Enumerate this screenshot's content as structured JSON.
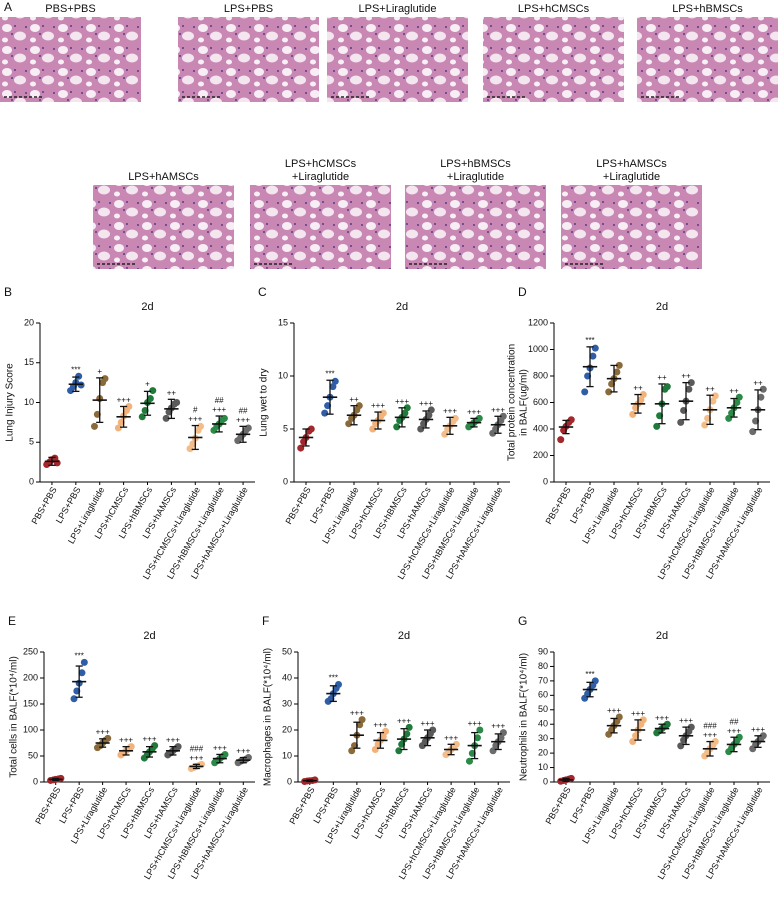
{
  "panel_a": {
    "panel_label": "A",
    "micrographs": [
      {
        "label": [
          "PBS+PBS"
        ]
      },
      {
        "label": [
          "LPS+PBS"
        ]
      },
      {
        "label": [
          "LPS+Liraglutide"
        ]
      },
      {
        "label": [
          "LPS+hCMSCs"
        ]
      },
      {
        "label": [
          "LPS+hBMSCs"
        ]
      },
      {
        "label": [
          "LPS+hAMSCs"
        ]
      },
      {
        "label": [
          "LPS+hCMSCs",
          "+Liraglutide"
        ]
      },
      {
        "label": [
          "LPS+hBMSCs",
          "+Liraglutide"
        ]
      },
      {
        "label": [
          "LPS+hAMSCs",
          "+Liraglutide"
        ]
      }
    ]
  },
  "chart_data": [
    {
      "type": "dotplot",
      "panel_label": "B",
      "title": "2d",
      "ylabel": [
        "Lung Injury Score"
      ],
      "categories": [
        "PBS+PBS",
        "LPS+PBS",
        "LPS+Liraglutide",
        "LPS+hCMSCs",
        "LPS+hBMSCs",
        "LPS+hAMSCs",
        "LPS+hCMSCs+Liraglutide",
        "LPS+hBMSCs+Liraglutide",
        "LPS+hAMSCs+Liraglutide"
      ],
      "colors": [
        "#a3272b",
        "#2f5da6",
        "#8a6a3a",
        "#f2b27b",
        "#1f7a3c",
        "#5a5a5a",
        "#f3bd8a",
        "#2b8a48",
        "#6b6b6b"
      ],
      "means": [
        2.6,
        12.3,
        10.3,
        8.2,
        9.9,
        9.2,
        5.6,
        7.3,
        6.0
      ],
      "sd": [
        0.5,
        0.9,
        2.8,
        1.3,
        1.5,
        1.2,
        1.5,
        1.0,
        1.0
      ],
      "points": [
        [
          2.2,
          2.5,
          2.8,
          3.0,
          2.4
        ],
        [
          11.5,
          12.0,
          12.5,
          13.3,
          12.2
        ],
        [
          7.0,
          8.5,
          10.5,
          12.5,
          13.0
        ],
        [
          6.8,
          7.5,
          8.3,
          9.0,
          9.5
        ],
        [
          8.2,
          9.0,
          10.0,
          10.5,
          11.5
        ],
        [
          8.0,
          8.8,
          9.3,
          9.8,
          10.0
        ],
        [
          4.2,
          4.8,
          5.5,
          6.5,
          7.0
        ],
        [
          6.5,
          7.0,
          7.3,
          7.8,
          8.0
        ],
        [
          5.2,
          5.6,
          6.0,
          6.5,
          6.8
        ]
      ],
      "annotations": [
        null,
        [
          "***"
        ],
        [
          "+"
        ],
        [
          "+++"
        ],
        [
          "+"
        ],
        [
          "++"
        ],
        [
          "#",
          "+++"
        ],
        [
          "##",
          "+++"
        ],
        [
          "##",
          "+++"
        ]
      ],
      "ylim": [
        0,
        20
      ],
      "yticks": [
        0,
        5,
        10,
        15,
        20
      ]
    },
    {
      "type": "dotplot",
      "panel_label": "C",
      "title": "2d",
      "ylabel": [
        "Lung wet to dry"
      ],
      "categories": [
        "PBS+PBS",
        "LPS+PBS",
        "LPS+Liraglutide",
        "LPS+hCMSCs",
        "LPS+hBMSCs",
        "LPS+hAMSCs",
        "LPS+hCMSCs+Liraglutide",
        "LPS+hBMSCs+Liraglutide",
        "LPS+hAMSCs+Liraglutide"
      ],
      "colors": [
        "#a3272b",
        "#2f5da6",
        "#8a6a3a",
        "#f2b27b",
        "#1f7a3c",
        "#5a5a5a",
        "#f3bd8a",
        "#2b8a48",
        "#6b6b6b"
      ],
      "means": [
        4.2,
        8.0,
        6.3,
        5.8,
        6.1,
        5.9,
        5.3,
        5.6,
        5.4
      ],
      "sd": [
        0.8,
        1.6,
        0.9,
        0.8,
        0.9,
        0.8,
        0.8,
        0.4,
        0.8
      ],
      "points": [
        [
          3.2,
          3.8,
          4.2,
          4.8,
          5.0
        ],
        [
          6.5,
          7.2,
          8.0,
          9.0,
          9.5
        ],
        [
          5.5,
          6.0,
          6.3,
          6.8,
          7.2
        ],
        [
          5.0,
          5.5,
          5.8,
          6.2,
          6.5
        ],
        [
          5.2,
          5.8,
          6.1,
          6.5,
          7.0
        ],
        [
          5.0,
          5.5,
          5.9,
          6.3,
          6.8
        ],
        [
          4.5,
          5.0,
          5.3,
          5.7,
          6.0
        ],
        [
          5.2,
          5.4,
          5.6,
          5.8,
          6.0
        ],
        [
          4.6,
          5.0,
          5.4,
          5.8,
          6.2
        ]
      ],
      "annotations": [
        null,
        [
          "***"
        ],
        [
          "++"
        ],
        [
          "+++"
        ],
        [
          "+++"
        ],
        [
          "+++"
        ],
        [
          "+++"
        ],
        [
          "+++"
        ],
        [
          "+++"
        ]
      ],
      "ylim": [
        0,
        15
      ],
      "yticks": [
        0,
        5,
        10,
        15
      ]
    },
    {
      "type": "dotplot",
      "panel_label": "D",
      "title": "2d",
      "ylabel": [
        "Total protein concentration",
        "in BALF(ug/ml)"
      ],
      "categories": [
        "PBS+PBS",
        "LPS+PBS",
        "LPS+Liraglutide",
        "LPS+hCMSCs",
        "LPS+hBMSCs",
        "LPS+hAMSCs",
        "LPS+hCMSCs+Liraglutide",
        "LPS+hBMSCs+Liraglutide",
        "LPS+hAMSCs+Liraglutide"
      ],
      "colors": [
        "#a3272b",
        "#2f5da6",
        "#8a6a3a",
        "#f2b27b",
        "#1f7a3c",
        "#5a5a5a",
        "#f3bd8a",
        "#2b8a48",
        "#6b6b6b"
      ],
      "means": [
        415,
        870,
        780,
        590,
        590,
        610,
        545,
        560,
        545
      ],
      "sd": [
        50,
        150,
        100,
        70,
        150,
        140,
        110,
        70,
        150
      ],
      "points": [
        [
          320,
          390,
          420,
          450,
          470
        ],
        [
          680,
          800,
          860,
          950,
          1010
        ],
        [
          680,
          740,
          780,
          830,
          880
        ],
        [
          510,
          560,
          590,
          620,
          660
        ],
        [
          420,
          500,
          590,
          700,
          720
        ],
        [
          450,
          540,
          610,
          700,
          750
        ],
        [
          430,
          480,
          545,
          610,
          650
        ],
        [
          480,
          520,
          560,
          600,
          640
        ],
        [
          380,
          460,
          545,
          640,
          700
        ]
      ],
      "annotations": [
        null,
        [
          "***"
        ],
        null,
        [
          "++"
        ],
        [
          "++"
        ],
        [
          "++"
        ],
        [
          "++"
        ],
        [
          "++"
        ],
        [
          "++"
        ]
      ],
      "ylim": [
        0,
        1200
      ],
      "yticks": [
        0,
        200,
        400,
        600,
        800,
        1000,
        1200
      ]
    },
    {
      "type": "dotplot",
      "panel_label": "E",
      "title": "2d",
      "ylabel": [
        "Total cells in BALF(*10⁴/ml)"
      ],
      "categories": [
        "PBS+PBS",
        "LPS+PBS",
        "LPS+Liraglutide",
        "LPS+hCMSCs",
        "LPS+hBMSCs",
        "LPS+hAMSCs",
        "LPS+hCMSCs+Liraglutide",
        "LPS+hBMSCs+Liraglutide",
        "LPS+hAMSCs+Liraglutide"
      ],
      "colors": [
        "#a3272b",
        "#2f5da6",
        "#8a6a3a",
        "#f2b27b",
        "#1f7a3c",
        "#5a5a5a",
        "#f3bd8a",
        "#2b8a48",
        "#6b6b6b"
      ],
      "means": [
        5,
        193,
        75,
        60,
        58,
        60,
        30,
        45,
        42
      ],
      "sd": [
        2,
        30,
        8,
        8,
        10,
        8,
        4,
        8,
        5
      ],
      "points": [
        [
          3,
          4,
          5,
          6,
          7
        ],
        [
          160,
          175,
          190,
          210,
          230
        ],
        [
          66,
          70,
          75,
          80,
          84
        ],
        [
          52,
          56,
          60,
          64,
          68
        ],
        [
          46,
          52,
          58,
          64,
          70
        ],
        [
          52,
          56,
          60,
          64,
          68
        ],
        [
          26,
          28,
          30,
          32,
          34
        ],
        [
          37,
          41,
          45,
          49,
          53
        ],
        [
          37,
          40,
          42,
          44,
          47
        ]
      ],
      "annotations": [
        null,
        [
          "***"
        ],
        [
          "+++"
        ],
        [
          "+++"
        ],
        [
          "+++"
        ],
        [
          "+++"
        ],
        [
          "###",
          "+++"
        ],
        [
          "+++"
        ],
        [
          "+++"
        ]
      ],
      "ylim": [
        0,
        250
      ],
      "yticks": [
        0,
        50,
        100,
        150,
        200,
        250
      ]
    },
    {
      "type": "dotplot",
      "panel_label": "F",
      "title": "2d",
      "ylabel": [
        "Macrophages in BALF(*10⁴/ml)"
      ],
      "categories": [
        "PBS+PBS",
        "LPS+PBS",
        "LPS+Liraglutide",
        "LPS+hCMSCs",
        "LPS+hBMSCs",
        "LPS+hAMSCs",
        "LPS+hCMSCs+Liraglutide",
        "LPS+hBMSCs+Liraglutide",
        "LPS+hAMSCs+Liraglutide"
      ],
      "colors": [
        "#a3272b",
        "#2f5da6",
        "#8a6a3a",
        "#f2b27b",
        "#1f7a3c",
        "#5a5a5a",
        "#f3bd8a",
        "#2b8a48",
        "#6b6b6b"
      ],
      "means": [
        0.5,
        34,
        18,
        16,
        16.5,
        17,
        12.5,
        14,
        15.5
      ],
      "sd": [
        0.3,
        3,
        5,
        3,
        4,
        3,
        2,
        5,
        3
      ],
      "points": [
        [
          0.2,
          0.4,
          0.5,
          0.6,
          0.8
        ],
        [
          31,
          32,
          34,
          36,
          37.5
        ],
        [
          12,
          14,
          18,
          22,
          24
        ],
        [
          12.5,
          14.5,
          16,
          17.5,
          19.5
        ],
        [
          12,
          14.5,
          16.5,
          18.5,
          21
        ],
        [
          14,
          15.5,
          17,
          18.5,
          20
        ],
        [
          10.5,
          11.5,
          12.5,
          13.5,
          14.5
        ],
        [
          8,
          11,
          14,
          17,
          20
        ],
        [
          12,
          14,
          15.5,
          17,
          19
        ]
      ],
      "annotations": [
        null,
        [
          "***"
        ],
        [
          "+++"
        ],
        [
          "+++"
        ],
        [
          "+++"
        ],
        [
          "+++"
        ],
        [
          "+++"
        ],
        [
          "+++"
        ],
        [
          "+++"
        ]
      ],
      "ylim": [
        0,
        50
      ],
      "yticks": [
        0,
        10,
        20,
        30,
        40,
        50
      ]
    },
    {
      "type": "dotplot",
      "panel_label": "G",
      "title": "2d",
      "ylabel": [
        "Neutrophils in BALF(*10⁴/ml)"
      ],
      "categories": [
        "PBS+PBS",
        "LPS+PBS",
        "LPS+Liraglutide",
        "LPS+hCMSCs",
        "LPS+hBMSCs",
        "LPS+hAMSCs",
        "LPS+hCMSCs+Liraglutide",
        "LPS+hBMSCs+Liraglutide",
        "LPS+hAMSCs+Liraglutide"
      ],
      "colors": [
        "#a3272b",
        "#2f5da6",
        "#8a6a3a",
        "#f2b27b",
        "#1f7a3c",
        "#5a5a5a",
        "#f3bd8a",
        "#2b8a48",
        "#6b6b6b"
      ],
      "means": [
        1.5,
        64,
        39,
        36,
        37,
        32,
        23,
        26,
        28
      ],
      "sd": [
        1,
        5,
        5,
        7,
        3,
        6,
        5,
        5,
        4
      ],
      "points": [
        [
          0.5,
          1,
          1.5,
          2,
          2.5
        ],
        [
          58,
          61,
          64,
          67,
          70
        ],
        [
          33,
          36,
          39,
          42,
          45
        ],
        [
          28,
          32,
          36,
          40,
          43
        ],
        [
          34,
          35.5,
          37,
          38.5,
          40
        ],
        [
          25,
          29,
          32,
          35,
          38
        ],
        [
          18,
          20.5,
          23,
          25.5,
          28
        ],
        [
          21,
          23.5,
          26,
          28.5,
          31
        ],
        [
          23,
          26,
          28,
          30,
          32
        ]
      ],
      "annotations": [
        null,
        [
          "***"
        ],
        [
          "+++"
        ],
        [
          "+++"
        ],
        [
          "+++"
        ],
        [
          "+++"
        ],
        [
          "###",
          "+++"
        ],
        [
          "##",
          "+++"
        ],
        [
          "+++"
        ]
      ],
      "ylim": [
        0,
        90
      ],
      "yticks": [
        0,
        10,
        20,
        30,
        40,
        50,
        60,
        70,
        80,
        90
      ]
    }
  ]
}
